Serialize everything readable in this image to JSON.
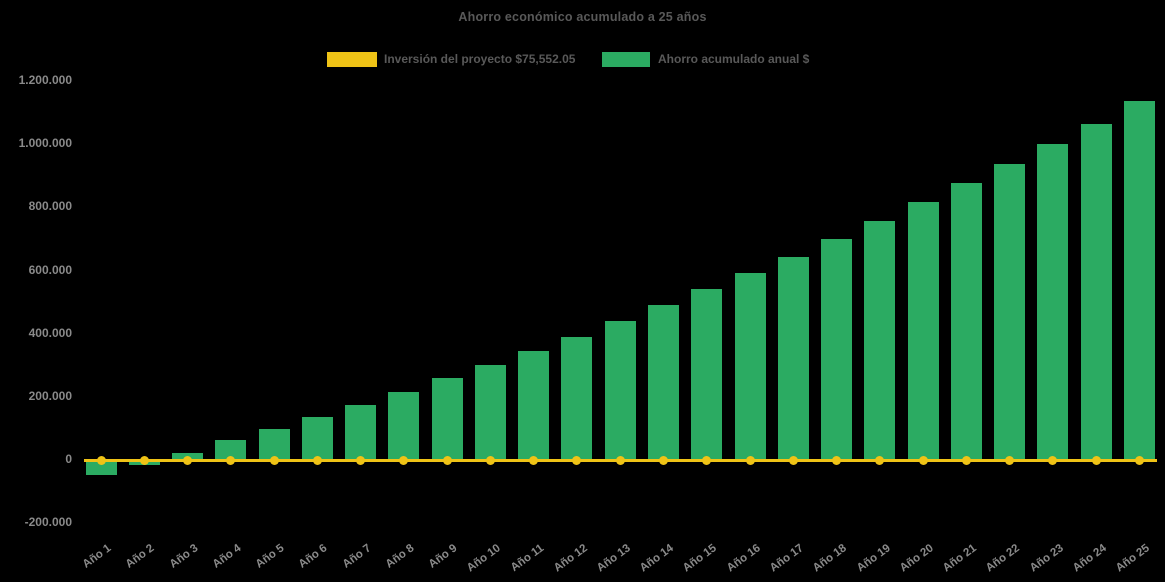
{
  "page": {
    "background": "#000000"
  },
  "chart_data": {
    "type": "bar",
    "title": "Ahorro económico acumulado a 25 años",
    "categories": [
      "Año 1",
      "Año 2",
      "Año 3",
      "Año 4",
      "Año 5",
      "Año 6",
      "Año 7",
      "Año 8",
      "Año 9",
      "Año 10",
      "Año 11",
      "Año 12",
      "Año 13",
      "Año 14",
      "Año 15",
      "Año 16",
      "Año 17",
      "Año 18",
      "Año 19",
      "Año 20",
      "Año 21",
      "Año 22",
      "Año 23",
      "Año 24",
      "Año 25"
    ],
    "series": [
      {
        "name": "Ahorro acumulado anual $",
        "type": "bar",
        "color": "#2BAB62",
        "values": [
          -48000,
          -18000,
          22000,
          62000,
          97000,
          135000,
          172000,
          214000,
          258000,
          300000,
          345000,
          389000,
          438000,
          490000,
          540000,
          590000,
          641000,
          697000,
          754000,
          815000,
          875000,
          936000,
          999000,
          1063000,
          1136000
        ]
      },
      {
        "name": "Inversión del proyecto $75,552.05",
        "type": "line",
        "color": "#EFC316",
        "marker": "circle",
        "nominal_value": 75552.05,
        "plotted_level": 0
      }
    ],
    "ylim": [
      -200000,
      1200000
    ],
    "ytick_step": 200000,
    "ytick_labels": [
      "1.200.000",
      "1.000.000",
      "800.000",
      "600.000",
      "400.000",
      "200.000",
      "0",
      "-200.000"
    ],
    "grid": false,
    "legend_position": "top",
    "background": "#000000",
    "text_colors": {
      "title": "#595959",
      "legend": "#595959",
      "axis": "#8A8A8A"
    }
  },
  "legend": {
    "items": [
      {
        "label": "Inversión del proyecto $75,552.05",
        "color": "#EFC316"
      },
      {
        "label": "Ahorro acumulado anual $",
        "color": "#2BAB62"
      }
    ]
  }
}
